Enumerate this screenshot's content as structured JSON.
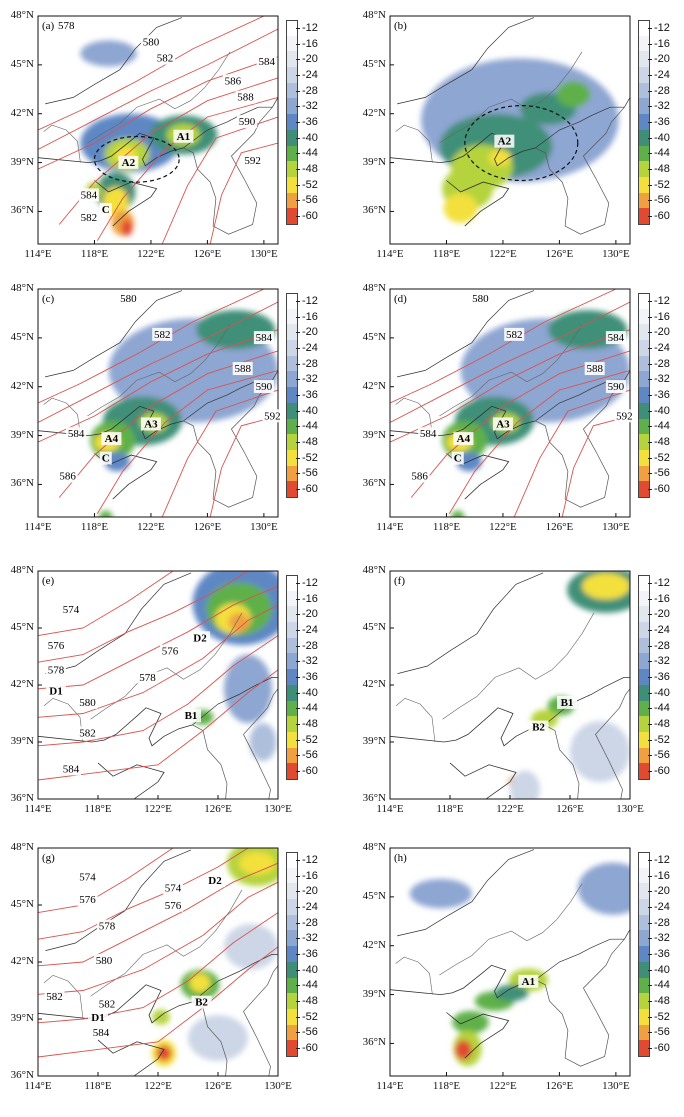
{
  "colorbar_levels": [
    "-12",
    "-16",
    "-20",
    "-24",
    "-28",
    "-32",
    "-36",
    "-40",
    "-44",
    "-48",
    "-52",
    "-56",
    "-60"
  ],
  "colorbar_colors": [
    "#ffffff",
    "#f2f4f7",
    "#e2e7ef",
    "#ccd6e6",
    "#aebfdc",
    "#8ea6d2",
    "#5f87c4",
    "#3f8f78",
    "#5fb04a",
    "#b5d33c",
    "#f3e03c",
    "#f0a040",
    "#e04a30"
  ],
  "x_ticks": [
    "114°E",
    "118°E",
    "122°E",
    "126°E",
    "130°E"
  ],
  "y_ticks": [
    "48°N",
    "45°N",
    "42°N",
    "39°N",
    "36°N"
  ],
  "contour_color": "#d9534f",
  "panels": [
    {
      "tag": "(a)",
      "labels": [
        {
          "t": "578"
        },
        {
          "t": "580"
        },
        {
          "t": "582"
        },
        {
          "t": "584"
        },
        {
          "t": "586"
        },
        {
          "t": "588"
        },
        {
          "t": "590"
        },
        {
          "t": "592"
        },
        {
          "t": "584"
        },
        {
          "t": "582"
        },
        {
          "t": "A1"
        },
        {
          "t": "A2"
        },
        {
          "t": "C"
        }
      ]
    },
    {
      "tag": "(b)",
      "labels": [
        {
          "t": "A2"
        }
      ]
    },
    {
      "tag": "(c)",
      "labels": [
        {
          "t": "580"
        },
        {
          "t": "582"
        },
        {
          "t": "584"
        },
        {
          "t": "588"
        },
        {
          "t": "590"
        },
        {
          "t": "592"
        },
        {
          "t": "584"
        },
        {
          "t": "586"
        },
        {
          "t": "A3"
        },
        {
          "t": "A4"
        },
        {
          "t": "C"
        }
      ]
    },
    {
      "tag": "(d)",
      "labels": [
        {
          "t": "580"
        },
        {
          "t": "582"
        },
        {
          "t": "584"
        },
        {
          "t": "588"
        },
        {
          "t": "590"
        },
        {
          "t": "592"
        },
        {
          "t": "584"
        },
        {
          "t": "586"
        },
        {
          "t": "A3"
        },
        {
          "t": "A4"
        },
        {
          "t": "C"
        }
      ]
    },
    {
      "tag": "(e)",
      "labels": [
        {
          "t": "574"
        },
        {
          "t": "576"
        },
        {
          "t": "578"
        },
        {
          "t": "576"
        },
        {
          "t": "578"
        },
        {
          "t": "580"
        },
        {
          "t": "582"
        },
        {
          "t": "584"
        },
        {
          "t": "D1"
        },
        {
          "t": "D2"
        },
        {
          "t": "B1"
        }
      ]
    },
    {
      "tag": "(f)",
      "labels": [
        {
          "t": "B1"
        },
        {
          "t": "B2"
        }
      ]
    },
    {
      "tag": "(g)",
      "labels": [
        {
          "t": "574"
        },
        {
          "t": "576"
        },
        {
          "t": "578"
        },
        {
          "t": "580"
        },
        {
          "t": "582"
        },
        {
          "t": "582"
        },
        {
          "t": "584"
        },
        {
          "t": "574"
        },
        {
          "t": "576"
        },
        {
          "t": "D1"
        },
        {
          "t": "D2"
        },
        {
          "t": "B2"
        }
      ]
    },
    {
      "tag": "(h)",
      "labels": [
        {
          "t": "A1"
        }
      ]
    }
  ]
}
